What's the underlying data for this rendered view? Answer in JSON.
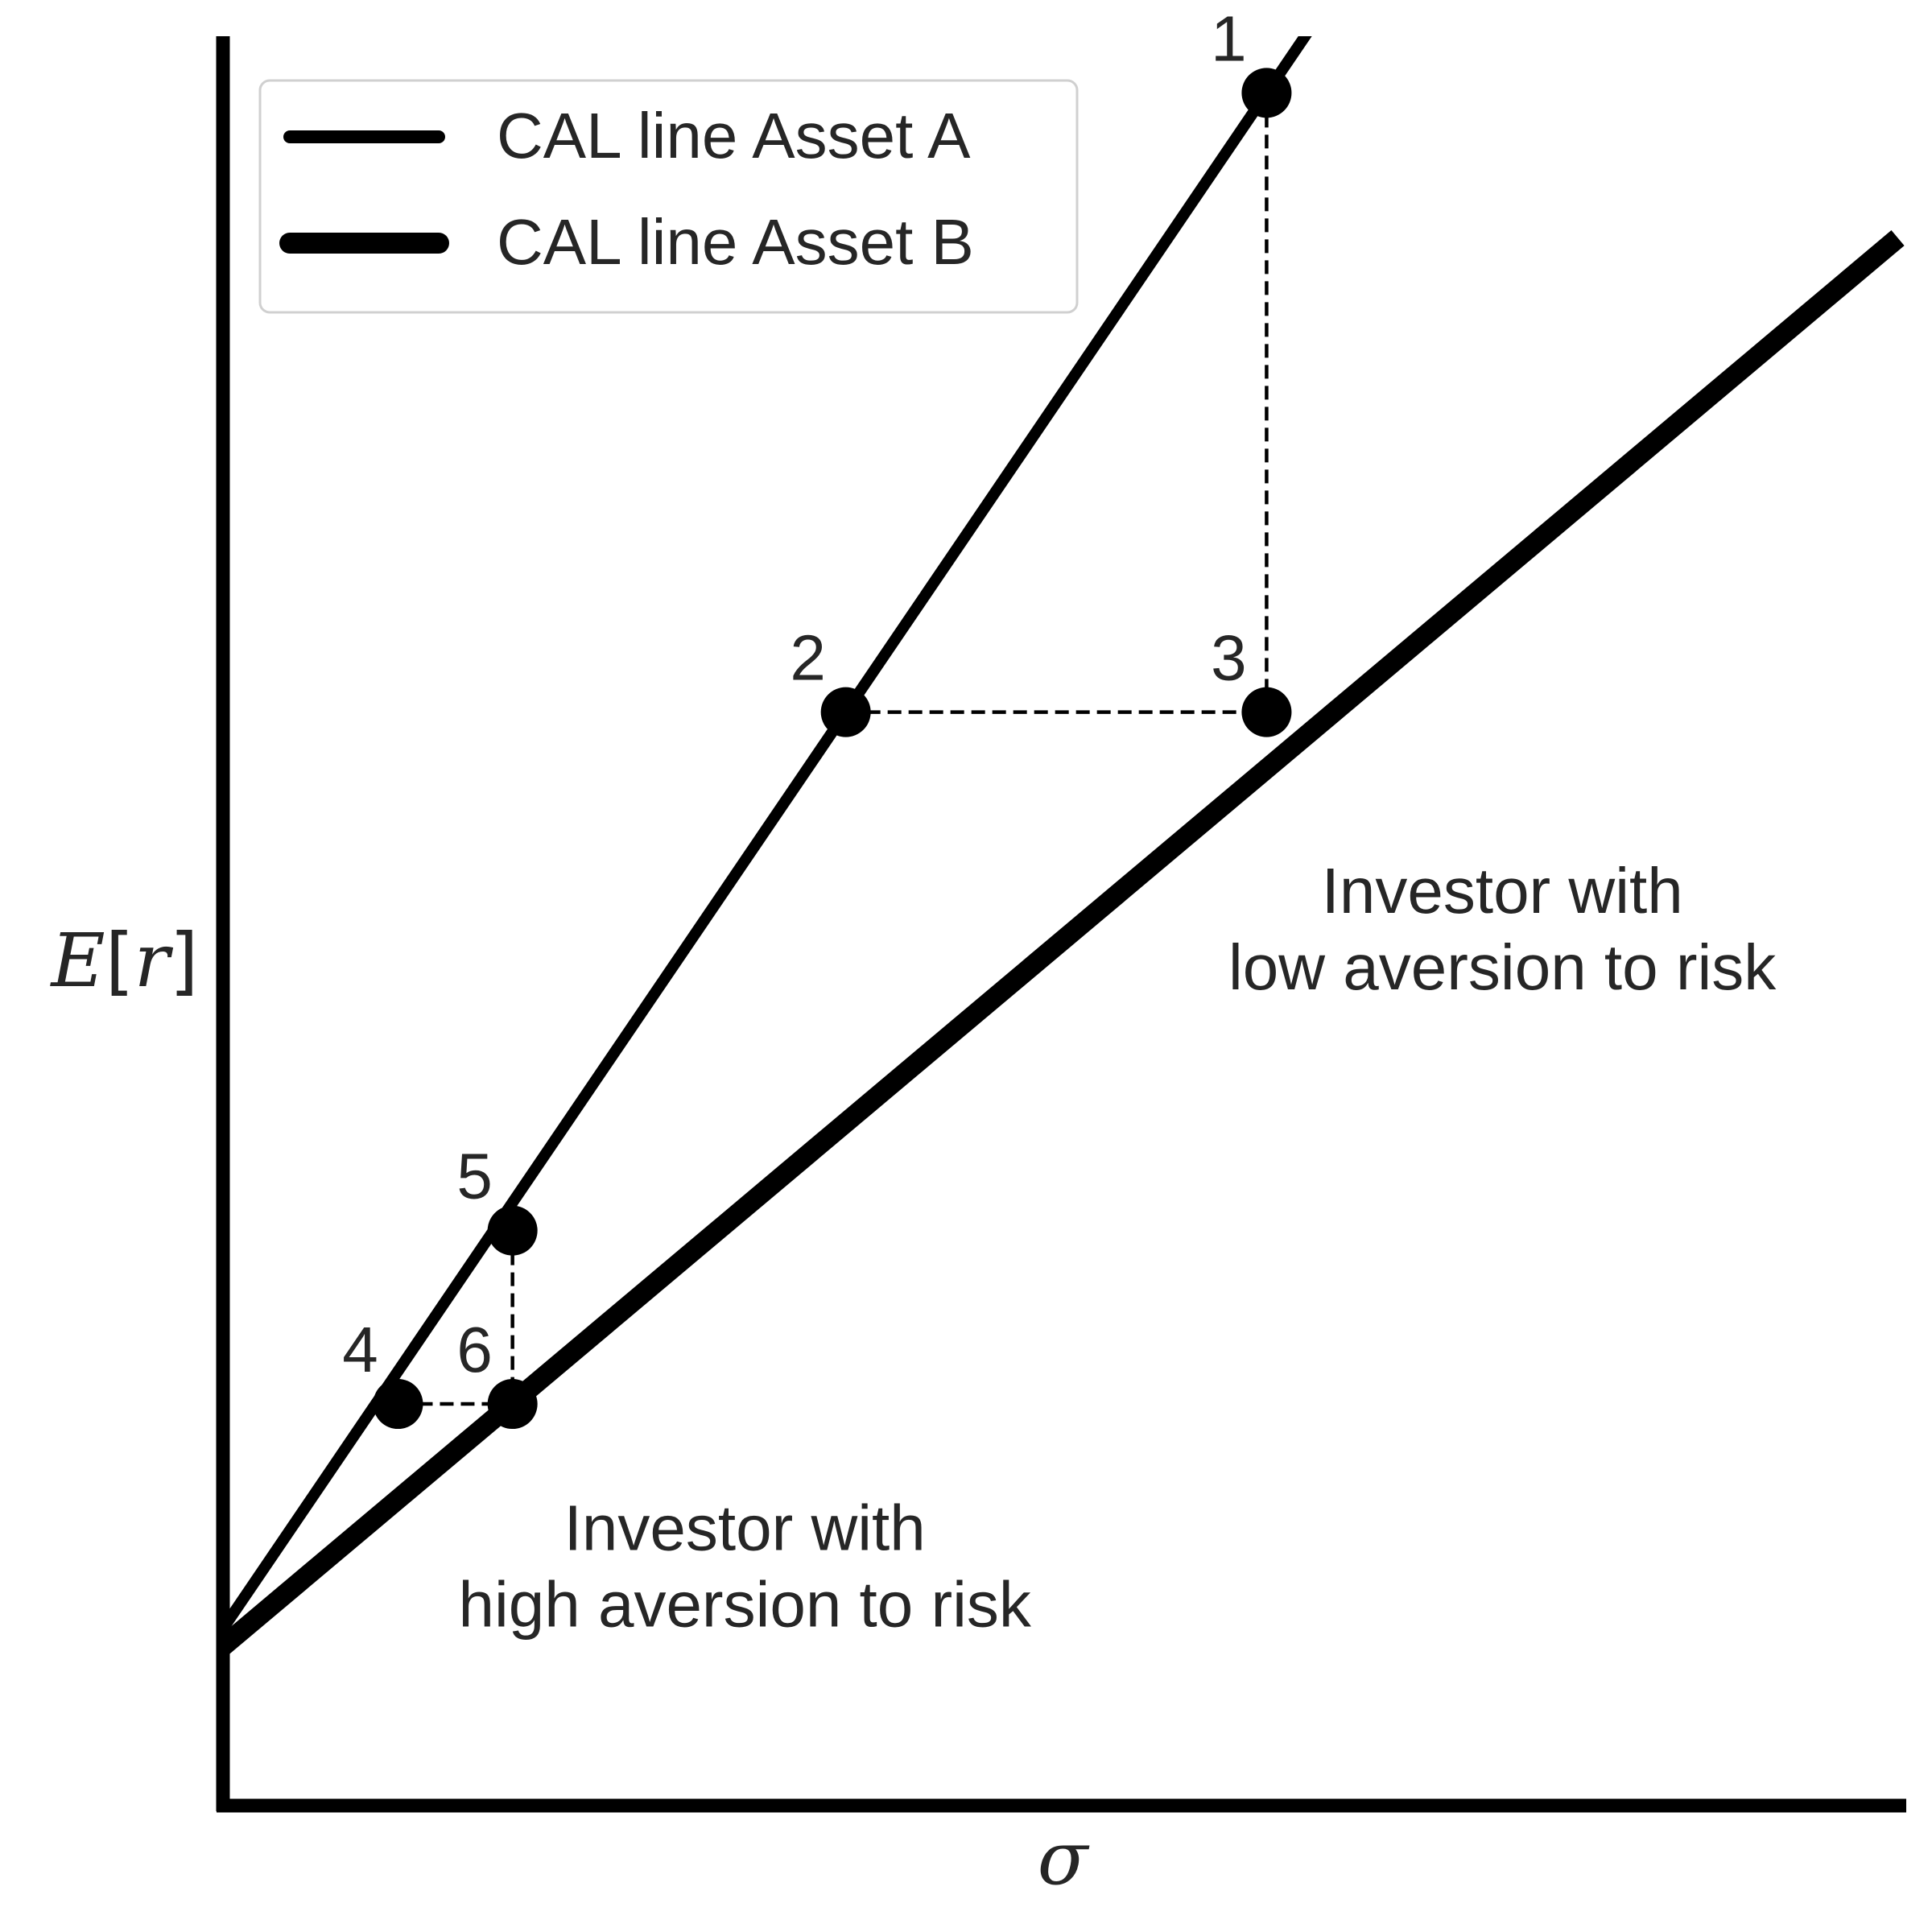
{
  "chart_data": {
    "type": "line",
    "title": "",
    "xlabel": "σ",
    "ylabel": {
      "letter": "E",
      "open": "[",
      "var": "r",
      "close": "]"
    },
    "xlim": [
      0,
      10
    ],
    "ylim": [
      0,
      10
    ],
    "grid": false,
    "ticks": false,
    "legend": {
      "placement": "top-left"
    },
    "series": [
      {
        "name": "CAL line Asset A",
        "style": "thin",
        "intercept": 1.0,
        "slope": 1.4,
        "x": [
          0,
          6.9
        ],
        "y": [
          1.0,
          10.66
        ]
      },
      {
        "name": "CAL line Asset B",
        "style": "thick",
        "intercept": 0.9,
        "slope": 0.8,
        "x": [
          0,
          9.95
        ],
        "y": [
          0.9,
          8.86
        ]
      }
    ],
    "points": [
      {
        "label": "1",
        "x": 6.2,
        "y": 9.68
      },
      {
        "label": "2",
        "x": 3.7,
        "y": 6.18
      },
      {
        "label": "3",
        "x": 6.2,
        "y": 6.18
      },
      {
        "label": "4",
        "x": 1.04,
        "y": 2.27
      },
      {
        "label": "5",
        "x": 1.72,
        "y": 3.25
      },
      {
        "label": "6",
        "x": 1.72,
        "y": 2.27
      }
    ],
    "guides": [
      {
        "from": "1",
        "to": "3"
      },
      {
        "from": "2",
        "to": "3"
      },
      {
        "from": "4",
        "to": "6"
      },
      {
        "from": "5",
        "to": "6"
      }
    ],
    "annotations": [
      {
        "lines": [
          "Investor with",
          "low aversion to risk"
        ],
        "x": 7.6,
        "y": 5.0
      },
      {
        "lines": [
          "Investor with",
          "high aversion to risk"
        ],
        "x": 3.1,
        "y": 1.4
      }
    ]
  }
}
